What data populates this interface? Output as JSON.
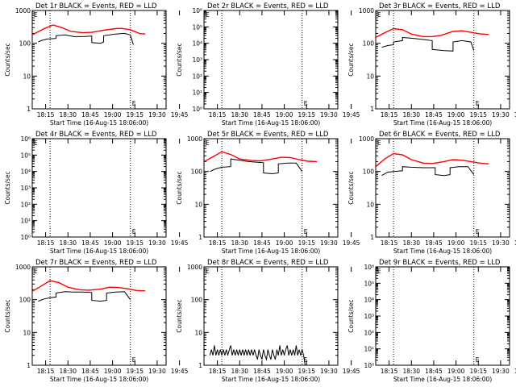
{
  "chart_data": {
    "type": "line",
    "x_ticks": [
      "18:15",
      "18:30",
      "18:45",
      "19:00",
      "19:15",
      "19:30",
      "19:45"
    ],
    "xlabel": "Start Time (16-Aug-15 18:06:00)",
    "ylabel": "Counts/sec",
    "y_scale": "log",
    "colors": {
      "events": "#000000",
      "lld": "#ff0000",
      "frame": "#000000"
    },
    "panels": [
      {
        "title": "Det 1r BLACK = Events, RED = LLD",
        "ylim": [
          1,
          1000
        ],
        "y_ticks": [
          "1",
          "10",
          "100",
          "1000"
        ],
        "vlines": [
          12,
          66
        ],
        "vline_label": "E",
        "red": [
          [
            0,
            180
          ],
          [
            8,
            280
          ],
          [
            14,
            360
          ],
          [
            20,
            300
          ],
          [
            26,
            230
          ],
          [
            34,
            210
          ],
          [
            40,
            215
          ],
          [
            48,
            250
          ],
          [
            56,
            280
          ],
          [
            60,
            285
          ],
          [
            66,
            260
          ],
          [
            72,
            200
          ],
          [
            76,
            190
          ]
        ],
        "black": [
          [
            4,
            110
          ],
          [
            6,
            120
          ],
          [
            10,
            135
          ],
          [
            16,
            140
          ],
          [
            16,
            170
          ],
          [
            22,
            180
          ],
          [
            28,
            160
          ],
          [
            34,
            160
          ],
          [
            40,
            165
          ],
          [
            40,
            105
          ],
          [
            46,
            100
          ],
          [
            48,
            110
          ],
          [
            48,
            170
          ],
          [
            56,
            190
          ],
          [
            62,
            200
          ],
          [
            66,
            180
          ],
          [
            68,
            90
          ]
        ]
      },
      {
        "title": "Det 2r BLACK = Events, RED = LLD",
        "ylim": [
          1,
          1000000
        ],
        "y_ticks": [
          "10⁰",
          "10¹",
          "10²",
          "10³",
          "10⁴",
          "10⁵",
          "10⁶"
        ],
        "vlines": [
          12,
          66
        ],
        "vline_label": "E",
        "red": [],
        "black": []
      },
      {
        "title": "Det 3r BLACK = Events, RED = LLD",
        "ylim": [
          1,
          1000
        ],
        "y_ticks": [
          "1",
          "10",
          "100",
          "1000"
        ],
        "vlines": [
          12,
          66
        ],
        "vline_label": "E",
        "red": [
          [
            0,
            150
          ],
          [
            6,
            210
          ],
          [
            12,
            280
          ],
          [
            18,
            260
          ],
          [
            24,
            190
          ],
          [
            32,
            160
          ],
          [
            38,
            160
          ],
          [
            44,
            175
          ],
          [
            52,
            230
          ],
          [
            58,
            240
          ],
          [
            64,
            215
          ],
          [
            70,
            195
          ],
          [
            76,
            185
          ]
        ],
        "black": [
          [
            4,
            75
          ],
          [
            8,
            85
          ],
          [
            12,
            90
          ],
          [
            12,
            110
          ],
          [
            18,
            120
          ],
          [
            18,
            150
          ],
          [
            26,
            140
          ],
          [
            32,
            130
          ],
          [
            38,
            120
          ],
          [
            38,
            65
          ],
          [
            46,
            60
          ],
          [
            52,
            58
          ],
          [
            52,
            110
          ],
          [
            58,
            120
          ],
          [
            64,
            110
          ],
          [
            66,
            60
          ]
        ]
      },
      {
        "title": "Det 4r BLACK = Events, RED = LLD",
        "ylim": [
          1,
          1000000
        ],
        "y_ticks": [
          "10⁰",
          "10¹",
          "10²",
          "10³",
          "10⁴",
          "10⁵",
          "10⁶"
        ],
        "vlines": [
          12,
          66
        ],
        "vline_label": "E",
        "red": [],
        "black": []
      },
      {
        "title": "Det 5r BLACK = Events, RED = LLD",
        "ylim": [
          1,
          1000
        ],
        "y_ticks": [
          "1",
          "10",
          "100",
          "1000"
        ],
        "vlines": [
          12,
          66
        ],
        "vline_label": "E",
        "red": [
          [
            0,
            200
          ],
          [
            6,
            280
          ],
          [
            12,
            400
          ],
          [
            18,
            330
          ],
          [
            24,
            240
          ],
          [
            32,
            215
          ],
          [
            38,
            210
          ],
          [
            46,
            240
          ],
          [
            52,
            270
          ],
          [
            58,
            265
          ],
          [
            64,
            230
          ],
          [
            70,
            205
          ],
          [
            76,
            200
          ]
        ],
        "black": [
          [
            4,
            100
          ],
          [
            8,
            120
          ],
          [
            12,
            135
          ],
          [
            18,
            140
          ],
          [
            18,
            240
          ],
          [
            24,
            220
          ],
          [
            30,
            200
          ],
          [
            36,
            190
          ],
          [
            40,
            185
          ],
          [
            40,
            90
          ],
          [
            46,
            85
          ],
          [
            50,
            90
          ],
          [
            50,
            170
          ],
          [
            56,
            180
          ],
          [
            62,
            180
          ],
          [
            66,
            100
          ]
        ]
      },
      {
        "title": "Det 6r BLACK = Events, RED = LLD",
        "ylim": [
          1,
          1000
        ],
        "y_ticks": [
          "1",
          "10",
          "100",
          "1000"
        ],
        "vlines": [
          12,
          66
        ],
        "vline_label": "E",
        "red": [
          [
            0,
            140
          ],
          [
            6,
            240
          ],
          [
            12,
            350
          ],
          [
            18,
            320
          ],
          [
            24,
            230
          ],
          [
            32,
            180
          ],
          [
            38,
            175
          ],
          [
            46,
            200
          ],
          [
            52,
            230
          ],
          [
            58,
            220
          ],
          [
            64,
            200
          ],
          [
            70,
            180
          ],
          [
            76,
            170
          ]
        ],
        "black": [
          [
            4,
            75
          ],
          [
            8,
            95
          ],
          [
            12,
            100
          ],
          [
            18,
            105
          ],
          [
            18,
            140
          ],
          [
            24,
            135
          ],
          [
            32,
            130
          ],
          [
            40,
            130
          ],
          [
            40,
            80
          ],
          [
            46,
            75
          ],
          [
            50,
            80
          ],
          [
            50,
            130
          ],
          [
            56,
            140
          ],
          [
            62,
            140
          ],
          [
            66,
            80
          ]
        ]
      },
      {
        "title": "Det 7r BLACK = Events, RED = LLD",
        "ylim": [
          1,
          1000
        ],
        "y_ticks": [
          "1",
          "10",
          "100",
          "1000"
        ],
        "vlines": [
          12,
          66
        ],
        "vline_label": "E",
        "red": [
          [
            0,
            180
          ],
          [
            6,
            260
          ],
          [
            12,
            380
          ],
          [
            18,
            330
          ],
          [
            24,
            240
          ],
          [
            32,
            200
          ],
          [
            38,
            195
          ],
          [
            46,
            210
          ],
          [
            52,
            240
          ],
          [
            58,
            235
          ],
          [
            64,
            215
          ],
          [
            70,
            190
          ],
          [
            76,
            185
          ]
        ],
        "black": [
          [
            4,
            90
          ],
          [
            8,
            105
          ],
          [
            12,
            115
          ],
          [
            16,
            120
          ],
          [
            16,
            160
          ],
          [
            22,
            175
          ],
          [
            28,
            170
          ],
          [
            34,
            170
          ],
          [
            40,
            165
          ],
          [
            40,
            95
          ],
          [
            46,
            90
          ],
          [
            50,
            95
          ],
          [
            50,
            160
          ],
          [
            56,
            170
          ],
          [
            62,
            175
          ],
          [
            66,
            100
          ]
        ]
      },
      {
        "title": "Det 8r BLACK = Events, RED = LLD",
        "ylim": [
          1,
          1000
        ],
        "y_ticks": [
          "1",
          "10",
          "100",
          "1000"
        ],
        "vlines": [
          12,
          66
        ],
        "vline_label": "E",
        "red": [],
        "black": [
          [
            4,
            2
          ],
          [
            5,
            3
          ],
          [
            6,
            2
          ],
          [
            7,
            4
          ],
          [
            8,
            2
          ],
          [
            9,
            3
          ],
          [
            10,
            2
          ],
          [
            11,
            3
          ],
          [
            12,
            2
          ],
          [
            13,
            3
          ],
          [
            14,
            2
          ],
          [
            15,
            3
          ],
          [
            16,
            2
          ],
          [
            17,
            3
          ],
          [
            18,
            4
          ],
          [
            19,
            2
          ],
          [
            20,
            3
          ],
          [
            21,
            2
          ],
          [
            22,
            3
          ],
          [
            23,
            2
          ],
          [
            24,
            3
          ],
          [
            25,
            2
          ],
          [
            26,
            3
          ],
          [
            27,
            2
          ],
          [
            28,
            3
          ],
          [
            29,
            2
          ],
          [
            30,
            3
          ],
          [
            31,
            2
          ],
          [
            32,
            3
          ],
          [
            33,
            2
          ],
          [
            34,
            3
          ],
          [
            35,
            2
          ],
          [
            36,
            1.5
          ],
          [
            37,
            3
          ],
          [
            38,
            2
          ],
          [
            39,
            1.5
          ],
          [
            40,
            3
          ],
          [
            41,
            2
          ],
          [
            42,
            1.5
          ],
          [
            43,
            3
          ],
          [
            44,
            2
          ],
          [
            45,
            1.5
          ],
          [
            46,
            3
          ],
          [
            47,
            2
          ],
          [
            48,
            1.5
          ],
          [
            49,
            3
          ],
          [
            50,
            2
          ],
          [
            51,
            4
          ],
          [
            52,
            2
          ],
          [
            53,
            3
          ],
          [
            54,
            2
          ],
          [
            55,
            3
          ],
          [
            56,
            4
          ],
          [
            57,
            2
          ],
          [
            58,
            3
          ],
          [
            59,
            2
          ],
          [
            60,
            3
          ],
          [
            61,
            2
          ],
          [
            62,
            4
          ],
          [
            63,
            2
          ],
          [
            64,
            3
          ],
          [
            65,
            2
          ],
          [
            66,
            3
          ],
          [
            67,
            2
          ],
          [
            68,
            1
          ]
        ]
      },
      {
        "title": "Det 9r BLACK = Events, RED = LLD",
        "ylim": [
          1,
          1000000
        ],
        "y_ticks": [
          "10⁰",
          "10¹",
          "10²",
          "10³",
          "10⁴",
          "10⁵",
          "10⁶"
        ],
        "vlines": [
          12,
          66
        ],
        "vline_label": "E",
        "red": [],
        "black": []
      }
    ]
  }
}
